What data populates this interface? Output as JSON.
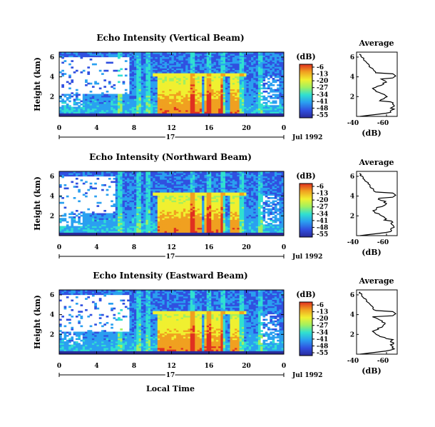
{
  "chart_data": [
    {
      "type": "heatmap",
      "title": "Echo Intensity (Vertical Beam)",
      "ylabel": "Height (km)",
      "y_ticks": [
        "2",
        "4",
        "6"
      ],
      "x_ticks": [
        "0",
        "4",
        "8",
        "12",
        "16",
        "20",
        "0"
      ],
      "date_day": "17",
      "date_label": "Jul 1992",
      "colorbar": {
        "unit": "(dB)",
        "ticks": [
          "-6",
          "-13",
          "-20",
          "-27",
          "-34",
          "-41",
          "-48",
          "-55"
        ],
        "range": [
          -55,
          -6
        ]
      },
      "profile": {
        "title": "Average",
        "xlabel": "(dB)",
        "x_ticks": [
          "-40",
          "-60"
        ],
        "y_ticks": [
          "2",
          "4",
          "6"
        ]
      }
    },
    {
      "type": "heatmap",
      "title": "Echo Intensity (Northward Beam)",
      "ylabel": "Height (km)",
      "y_ticks": [
        "2",
        "4",
        "6"
      ],
      "x_ticks": [
        "0",
        "4",
        "8",
        "12",
        "16",
        "20",
        "0"
      ],
      "date_day": "17",
      "date_label": "Jul 1992",
      "colorbar": {
        "unit": "(dB)",
        "ticks": [
          "-6",
          "-13",
          "-20",
          "-27",
          "-34",
          "-41",
          "-48",
          "-55"
        ],
        "range": [
          -55,
          -6
        ]
      },
      "profile": {
        "title": "Average",
        "xlabel": "(dB)",
        "x_ticks": [
          "-40",
          "-60"
        ],
        "y_ticks": [
          "2",
          "4",
          "6"
        ]
      }
    },
    {
      "type": "heatmap",
      "title": "Echo Intensity (Eastward Beam)",
      "ylabel": "Height (km)",
      "y_ticks": [
        "2",
        "4",
        "6"
      ],
      "x_ticks": [
        "0",
        "4",
        "8",
        "12",
        "16",
        "20",
        "0"
      ],
      "date_day": "17",
      "date_label": "Jul 1992",
      "colorbar": {
        "unit": "(dB)",
        "ticks": [
          "-6",
          "-13",
          "-20",
          "-27",
          "-34",
          "-41",
          "-48",
          "-55"
        ],
        "range": [
          -55,
          -6
        ]
      },
      "profile": {
        "title": "Average",
        "xlabel": "(dB)",
        "x_ticks": [
          "-40",
          "-60"
        ],
        "y_ticks": [
          "2",
          "4",
          "6"
        ]
      }
    }
  ],
  "xlabel": "Local Time",
  "colors": {
    "colormap": [
      "#2a2a9a",
      "#3050e0",
      "#2aa0f0",
      "#30e0d0",
      "#a0f060",
      "#f0f030",
      "#f0a020",
      "#e03020"
    ],
    "missing": "#ffffff"
  }
}
